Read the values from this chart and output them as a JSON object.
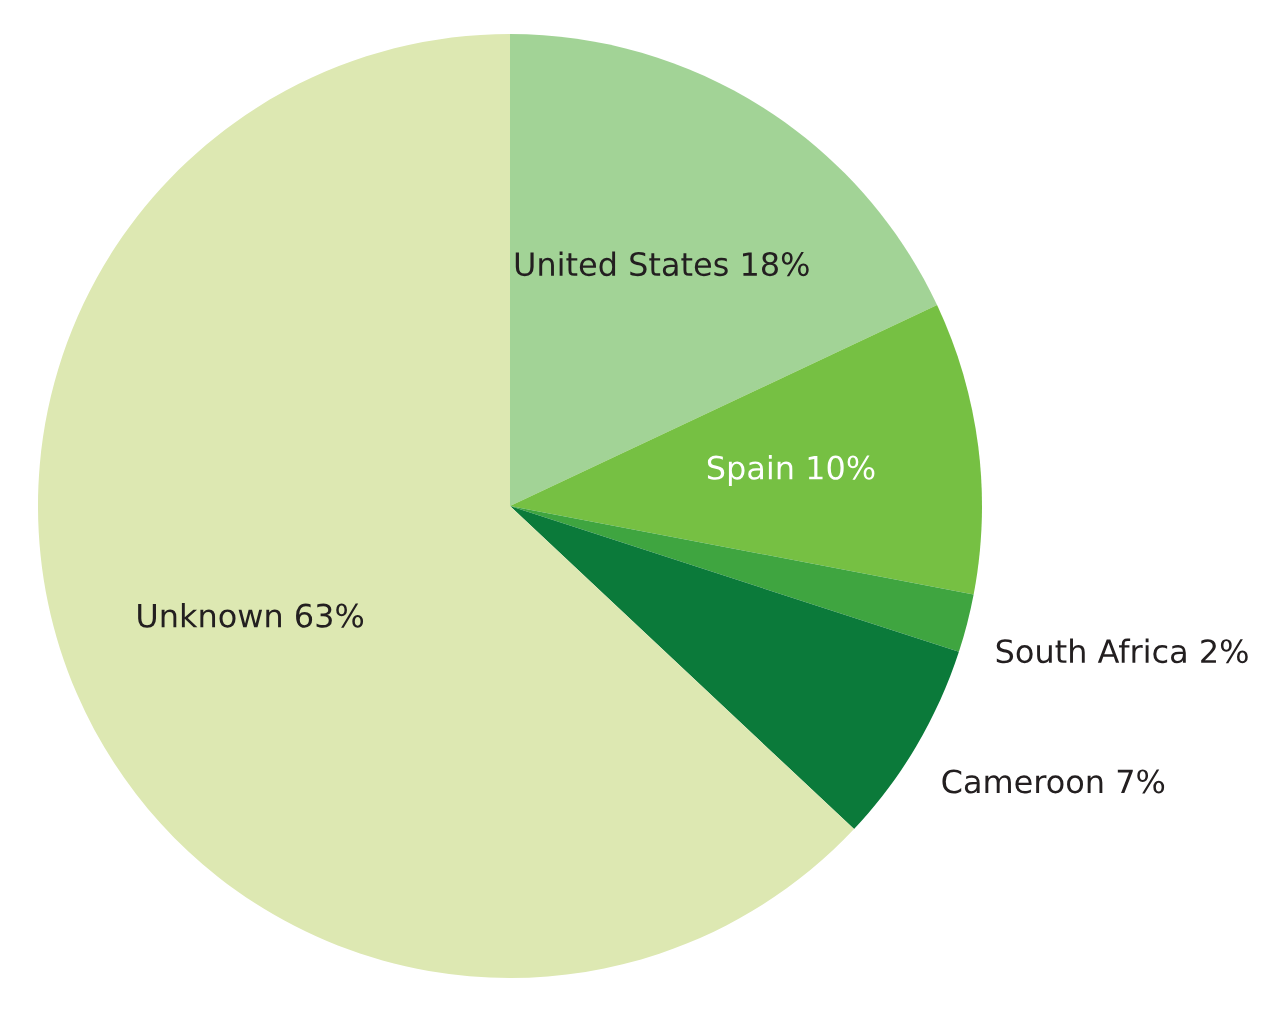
{
  "chart_data": {
    "type": "pie",
    "categories": [
      "United States",
      "Spain",
      "South Africa",
      "Cameroon",
      "Unknown"
    ],
    "values": [
      18,
      10,
      2,
      7,
      63
    ],
    "value_labels": [
      "18%",
      "10%",
      "2%",
      "7%",
      "63%"
    ],
    "colors": [
      "#a2d396",
      "#76c043",
      "#3fa540",
      "#0b7a3a",
      "#dde8b2"
    ]
  }
}
